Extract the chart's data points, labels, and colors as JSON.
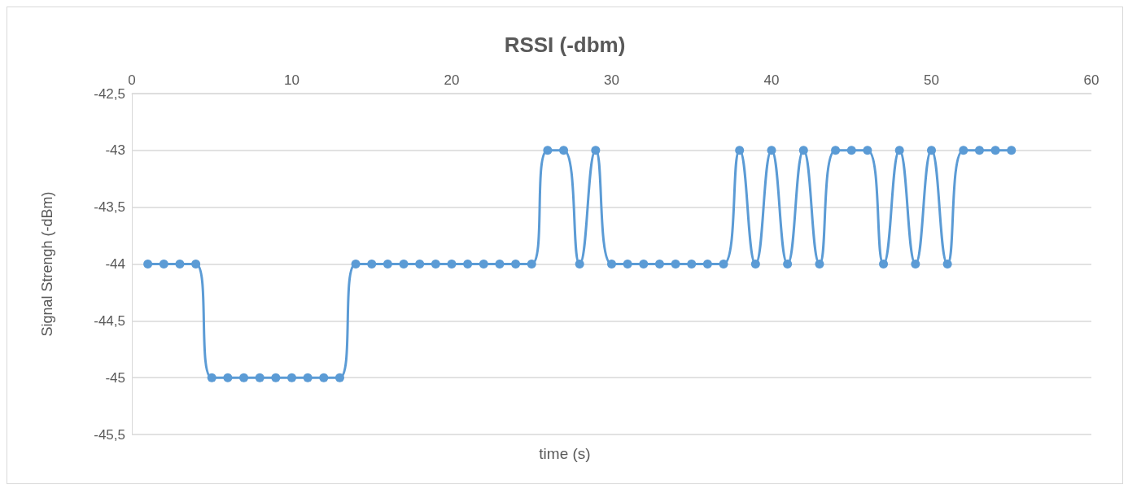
{
  "chart_data": {
    "type": "line",
    "title": "RSSI (-dbm)",
    "xlabel": "time (s)",
    "ylabel": "Signal Strengh (-dBm)",
    "x": [
      1,
      2,
      3,
      4,
      5,
      6,
      7,
      8,
      9,
      10,
      11,
      12,
      13,
      14,
      15,
      16,
      17,
      18,
      19,
      20,
      21,
      22,
      23,
      24,
      25,
      26,
      27,
      28,
      29,
      30,
      31,
      32,
      33,
      34,
      35,
      36,
      37,
      38,
      39,
      40,
      41,
      42,
      43,
      44,
      45,
      46,
      47,
      48,
      49,
      50,
      51,
      52,
      53,
      54,
      55
    ],
    "series": [
      {
        "color": "#5b9bd5",
        "values": [
          -44,
          -44,
          -44,
          -44,
          -45,
          -45,
          -45,
          -45,
          -45,
          -45,
          -45,
          -45,
          -45,
          -44,
          -44,
          -44,
          -44,
          -44,
          -44,
          -44,
          -44,
          -44,
          -44,
          -44,
          -44,
          -43,
          -43,
          -44,
          -43,
          -44,
          -44,
          -44,
          -44,
          -44,
          -44,
          -44,
          -44,
          -43,
          -44,
          -43,
          -44,
          -43,
          -44,
          -43,
          -43,
          -43,
          -44,
          -43,
          -44,
          -43,
          -44,
          -43,
          -43,
          -43,
          -43
        ]
      }
    ],
    "xlim": [
      0,
      60
    ],
    "xticks": [
      0,
      10,
      20,
      30,
      40,
      50,
      60
    ],
    "ylim": [
      -45.5,
      -42.5
    ],
    "yticks": [
      {
        "value": -45.5,
        "label": "-45,5"
      },
      -45,
      {
        "value": -44.5,
        "label": "-44,5"
      },
      -44,
      {
        "value": -43.5,
        "label": "-43,5"
      },
      -43,
      {
        "value": -42.5,
        "label": "-42,5"
      }
    ],
    "grid": "y",
    "marker": "circle",
    "line_style": "solid"
  }
}
